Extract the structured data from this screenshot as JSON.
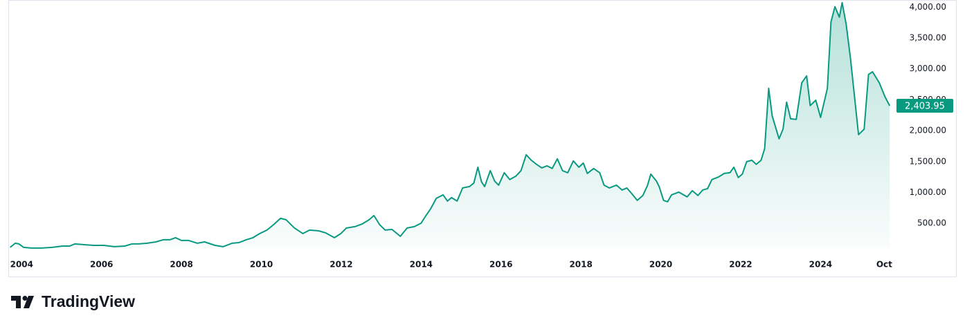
{
  "chart_data": {
    "type": "area",
    "x": [
      2003.71,
      2003.84,
      2003.93,
      2004.05,
      2004.24,
      2004.5,
      2004.76,
      2005.02,
      2005.2,
      2005.33,
      2005.54,
      2005.8,
      2006.06,
      2006.32,
      2006.58,
      2006.76,
      2006.93,
      2007.14,
      2007.36,
      2007.54,
      2007.71,
      2007.85,
      2008.0,
      2008.18,
      2008.4,
      2008.58,
      2008.84,
      2009.04,
      2009.27,
      2009.44,
      2009.62,
      2009.79,
      2009.96,
      2010.14,
      2010.31,
      2010.48,
      2010.62,
      2010.83,
      2011.04,
      2011.21,
      2011.44,
      2011.61,
      2011.83,
      2011.99,
      2012.13,
      2012.34,
      2012.53,
      2012.7,
      2012.82,
      2012.96,
      2013.1,
      2013.27,
      2013.48,
      2013.65,
      2013.83,
      2014.0,
      2014.12,
      2014.24,
      2014.38,
      2014.55,
      2014.66,
      2014.76,
      2014.9,
      2015.04,
      2015.21,
      2015.32,
      2015.42,
      2015.51,
      2015.59,
      2015.73,
      2015.84,
      2015.94,
      2016.08,
      2016.22,
      2016.37,
      2016.5,
      2016.63,
      2016.76,
      2016.89,
      2017.02,
      2017.15,
      2017.28,
      2017.41,
      2017.54,
      2017.67,
      2017.81,
      2017.95,
      2018.06,
      2018.16,
      2018.32,
      2018.47,
      2018.58,
      2018.71,
      2018.89,
      2019.03,
      2019.15,
      2019.27,
      2019.41,
      2019.55,
      2019.67,
      2019.75,
      2019.89,
      2019.96,
      2020.07,
      2020.17,
      2020.27,
      2020.45,
      2020.66,
      2020.79,
      2020.93,
      2021.05,
      2021.17,
      2021.28,
      2021.45,
      2021.59,
      2021.73,
      2021.83,
      2021.94,
      2022.04,
      2022.15,
      2022.28,
      2022.39,
      2022.51,
      2022.6,
      2022.7,
      2022.79,
      2022.96,
      2023.06,
      2023.15,
      2023.25,
      2023.39,
      2023.53,
      2023.65,
      2023.74,
      2023.88,
      2024.0,
      2024.17,
      2024.26,
      2024.36,
      2024.47,
      2024.54,
      2024.64,
      2024.75,
      2024.95,
      2025.09,
      2025.2,
      2025.3,
      2025.47,
      2025.61,
      2025.73
    ],
    "values": [
      112,
      179,
      168,
      112,
      101,
      101,
      112,
      134,
      134,
      168,
      157,
      145,
      145,
      123,
      134,
      168,
      168,
      179,
      201,
      235,
      235,
      269,
      224,
      224,
      179,
      201,
      145,
      123,
      179,
      190,
      235,
      269,
      336,
      392,
      481,
      582,
      560,
      425,
      336,
      392,
      380,
      347,
      269,
      336,
      425,
      448,
      492,
      560,
      627,
      481,
      392,
      403,
      291,
      425,
      448,
      504,
      627,
      739,
      906,
      962,
      862,
      918,
      862,
      1074,
      1097,
      1153,
      1410,
      1175,
      1097,
      1354,
      1186,
      1119,
      1320,
      1209,
      1264,
      1354,
      1611,
      1522,
      1455,
      1399,
      1432,
      1388,
      1544,
      1354,
      1320,
      1511,
      1410,
      1477,
      1309,
      1388,
      1320,
      1119,
      1074,
      1119,
      1041,
      1074,
      985,
      873,
      951,
      1119,
      1298,
      1186,
      1097,
      873,
      850,
      962,
      1007,
      929,
      1029,
      951,
      1041,
      1063,
      1209,
      1253,
      1309,
      1320,
      1410,
      1242,
      1298,
      1499,
      1522,
      1455,
      1522,
      1712,
      2686,
      2238,
      1869,
      2025,
      2462,
      2193,
      2182,
      2775,
      2887,
      2406,
      2495,
      2216,
      2686,
      3760,
      4006,
      3838,
      4073,
      3726,
      3167,
      1936,
      2025,
      2909,
      2954,
      2775,
      2552,
      2403.95
    ],
    "value_labels": [
      null,
      null,
      null,
      null,
      null,
      null,
      null,
      null,
      null,
      null,
      null,
      null,
      null,
      null,
      null,
      null,
      null,
      null,
      null,
      null,
      null,
      null,
      null,
      null,
      null,
      null,
      null,
      null,
      null,
      null,
      null,
      null,
      null,
      null,
      null,
      null,
      null,
      null,
      null,
      null,
      null,
      null,
      null,
      null,
      null,
      null,
      null,
      null,
      null,
      null,
      null,
      null,
      null,
      null,
      null,
      null,
      null,
      null,
      null,
      null,
      null,
      null,
      null,
      null,
      null,
      null,
      null,
      null,
      null,
      null,
      null,
      null,
      null,
      null,
      null,
      null,
      null,
      null,
      null,
      null,
      null,
      null,
      null,
      null,
      null,
      null,
      null,
      null,
      null,
      null,
      null,
      null,
      null,
      null,
      null,
      null,
      null,
      null,
      null,
      null,
      null,
      null,
      null,
      null,
      null,
      null,
      null,
      null,
      null,
      null,
      null,
      null,
      null,
      null,
      null,
      null,
      null,
      null,
      null,
      null,
      null,
      null,
      null,
      null,
      null,
      null,
      null,
      null,
      null,
      null,
      null,
      null,
      null,
      null,
      null,
      null,
      null,
      null,
      null,
      null,
      null,
      null,
      null,
      null,
      null,
      null,
      null,
      null,
      null,
      "2,403.95"
    ],
    "color": "#089981",
    "xlim": [
      2003.7,
      2025.9
    ],
    "xticks": [
      2004,
      2006,
      2008,
      2010,
      2012,
      2014,
      2016,
      2018,
      2020,
      2022,
      2024,
      {
        "value": 2025.75,
        "label": "Oct"
      }
    ],
    "ylim": [
      100,
      4115
    ],
    "yticks": [
      {
        "value": 500,
        "label": "500.00"
      },
      {
        "value": 1000,
        "label": "1,000.00"
      },
      {
        "value": 1500,
        "label": "1,500.00"
      },
      {
        "value": 2000,
        "label": "2,000.00"
      },
      {
        "value": 2500,
        "label": "2,500.00"
      },
      {
        "value": 3000,
        "label": "3,000.00"
      },
      {
        "value": 3500,
        "label": "3,500.00"
      },
      {
        "value": 4000,
        "label": "4,000.00"
      }
    ],
    "grid": false
  },
  "branding": "TradingView"
}
